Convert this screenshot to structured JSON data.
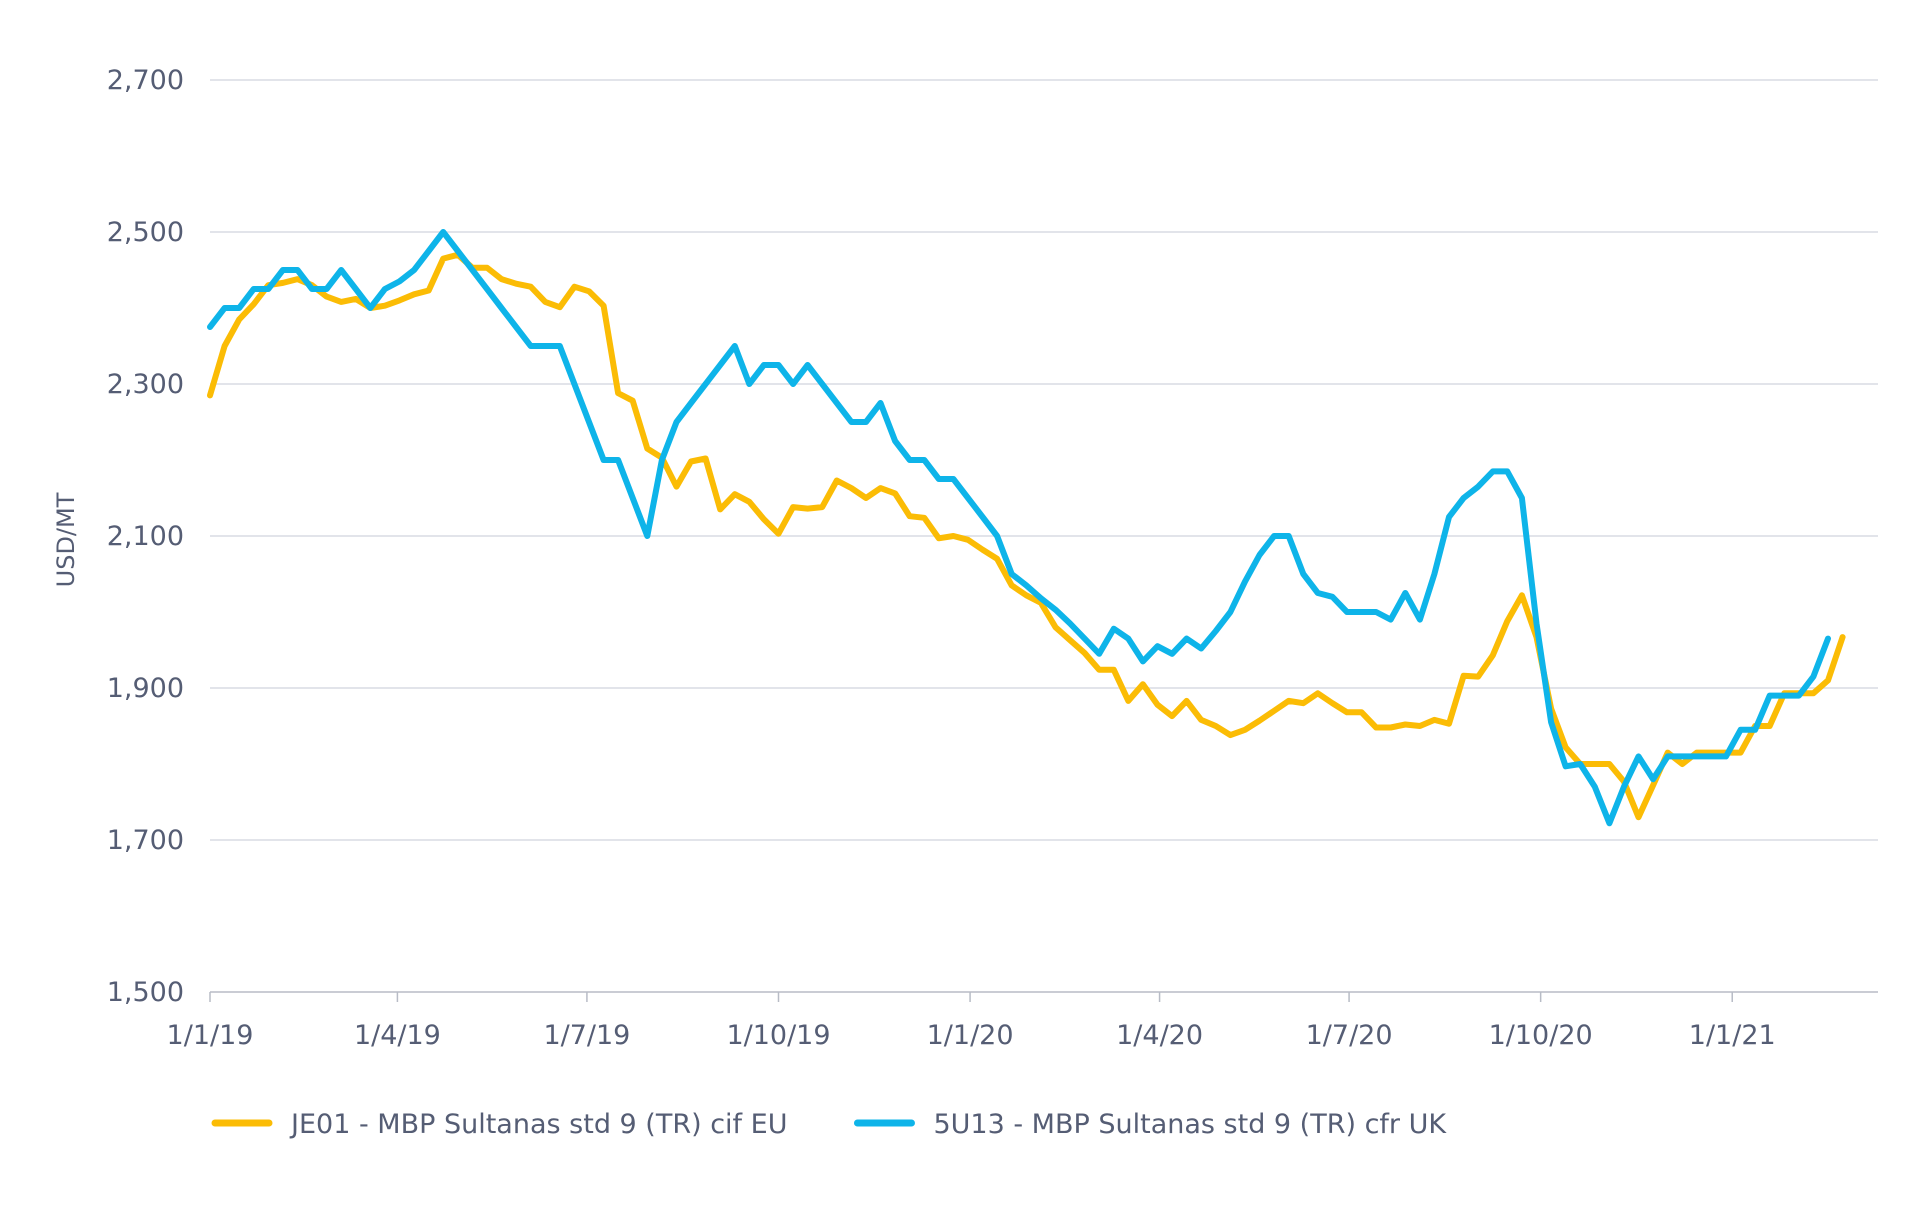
{
  "chart_data": {
    "type": "line",
    "ylabel": "USD/MT",
    "xlabel": "",
    "ylim": [
      1500,
      2700
    ],
    "yticks": [
      1500,
      1700,
      1900,
      2100,
      2300,
      2500,
      2700
    ],
    "ytick_labels": [
      "1,500",
      "1,700",
      "1,900",
      "2,100",
      "2,300",
      "2,500",
      "2,700"
    ],
    "x_range": [
      "2019-01-01",
      "2021-03-12"
    ],
    "xticks": [
      "2019-01-01",
      "2019-04-01",
      "2019-07-01",
      "2019-10-01",
      "2020-01-01",
      "2020-04-01",
      "2020-07-01",
      "2020-10-01",
      "2021-01-01"
    ],
    "xtick_labels": [
      "1/1/19",
      "1/4/19",
      "1/7/19",
      "1/10/19",
      "1/1/20",
      "1/4/20",
      "1/7/20",
      "1/10/20",
      "1/1/21"
    ],
    "grid": true,
    "legend_position": "bottom-left",
    "series": [
      {
        "name": "JE01 - MBP Sultanas std 9 (TR) cif EU",
        "color": "#fbbc05",
        "points": [
          [
            "2019-01-01",
            2285
          ],
          [
            "2019-01-08",
            2350
          ],
          [
            "2019-01-15",
            2385
          ],
          [
            "2019-01-22",
            2405
          ],
          [
            "2019-01-29",
            2430
          ],
          [
            "2019-02-05",
            2433
          ],
          [
            "2019-02-12",
            2438
          ],
          [
            "2019-02-19",
            2430
          ],
          [
            "2019-02-26",
            2415
          ],
          [
            "2019-03-05",
            2408
          ],
          [
            "2019-03-12",
            2412
          ],
          [
            "2019-03-19",
            2400
          ],
          [
            "2019-03-26",
            2403
          ],
          [
            "2019-04-02",
            2410
          ],
          [
            "2019-04-09",
            2418
          ],
          [
            "2019-04-16",
            2423
          ],
          [
            "2019-04-23",
            2465
          ],
          [
            "2019-04-30",
            2470
          ],
          [
            "2019-05-07",
            2453
          ],
          [
            "2019-05-14",
            2453
          ],
          [
            "2019-05-21",
            2438
          ],
          [
            "2019-05-28",
            2432
          ],
          [
            "2019-06-04",
            2428
          ],
          [
            "2019-06-11",
            2408
          ],
          [
            "2019-06-18",
            2401
          ],
          [
            "2019-06-25",
            2428
          ],
          [
            "2019-07-02",
            2422
          ],
          [
            "2019-07-09",
            2403
          ],
          [
            "2019-07-16",
            2288
          ],
          [
            "2019-07-23",
            2278
          ],
          [
            "2019-07-30",
            2215
          ],
          [
            "2019-08-06",
            2203
          ],
          [
            "2019-08-13",
            2165
          ],
          [
            "2019-08-20",
            2198
          ],
          [
            "2019-08-27",
            2202
          ],
          [
            "2019-09-03",
            2135
          ],
          [
            "2019-09-10",
            2155
          ],
          [
            "2019-09-17",
            2145
          ],
          [
            "2019-09-24",
            2122
          ],
          [
            "2019-10-01",
            2103
          ],
          [
            "2019-10-08",
            2138
          ],
          [
            "2019-10-15",
            2136
          ],
          [
            "2019-10-22",
            2138
          ],
          [
            "2019-10-29",
            2173
          ],
          [
            "2019-11-05",
            2163
          ],
          [
            "2019-11-12",
            2150
          ],
          [
            "2019-11-19",
            2163
          ],
          [
            "2019-11-26",
            2156
          ],
          [
            "2019-12-03",
            2126
          ],
          [
            "2019-12-10",
            2124
          ],
          [
            "2019-12-17",
            2097
          ],
          [
            "2019-12-24",
            2100
          ],
          [
            "2019-12-31",
            2095
          ],
          [
            "2020-01-07",
            2082
          ],
          [
            "2020-01-14",
            2070
          ],
          [
            "2020-01-21",
            2035
          ],
          [
            "2020-01-28",
            2022
          ],
          [
            "2020-02-04",
            2012
          ],
          [
            "2020-02-11",
            1980
          ],
          [
            "2020-02-18",
            1963
          ],
          [
            "2020-02-25",
            1946
          ],
          [
            "2020-03-03",
            1924
          ],
          [
            "2020-03-10",
            1924
          ],
          [
            "2020-03-17",
            1883
          ],
          [
            "2020-03-24",
            1905
          ],
          [
            "2020-03-31",
            1878
          ],
          [
            "2020-04-07",
            1863
          ],
          [
            "2020-04-14",
            1883
          ],
          [
            "2020-04-21",
            1858
          ],
          [
            "2020-04-28",
            1850
          ],
          [
            "2020-05-05",
            1838
          ],
          [
            "2020-05-12",
            1845
          ],
          [
            "2020-05-19",
            1857
          ],
          [
            "2020-05-26",
            1870
          ],
          [
            "2020-06-02",
            1883
          ],
          [
            "2020-06-09",
            1880
          ],
          [
            "2020-06-16",
            1893
          ],
          [
            "2020-06-23",
            1880
          ],
          [
            "2020-06-30",
            1868
          ],
          [
            "2020-07-07",
            1868
          ],
          [
            "2020-07-14",
            1848
          ],
          [
            "2020-07-21",
            1848
          ],
          [
            "2020-07-28",
            1852
          ],
          [
            "2020-08-04",
            1850
          ],
          [
            "2020-08-11",
            1858
          ],
          [
            "2020-08-18",
            1853
          ],
          [
            "2020-08-25",
            1916
          ],
          [
            "2020-09-01",
            1915
          ],
          [
            "2020-09-08",
            1943
          ],
          [
            "2020-09-15",
            1988
          ],
          [
            "2020-09-22",
            2022
          ],
          [
            "2020-09-29",
            1967
          ],
          [
            "2020-10-06",
            1873
          ],
          [
            "2020-10-13",
            1822
          ],
          [
            "2020-10-20",
            1800
          ],
          [
            "2020-10-27",
            1800
          ],
          [
            "2020-11-03",
            1800
          ],
          [
            "2020-11-10",
            1777
          ],
          [
            "2020-11-17",
            1730
          ],
          [
            "2020-11-24",
            1772
          ],
          [
            "2020-12-01",
            1815
          ],
          [
            "2020-12-08",
            1800
          ],
          [
            "2020-12-15",
            1815
          ],
          [
            "2020-12-22",
            1815
          ],
          [
            "2020-12-29",
            1815
          ],
          [
            "2021-01-05",
            1815
          ],
          [
            "2021-01-12",
            1850
          ],
          [
            "2021-01-19",
            1850
          ],
          [
            "2021-01-26",
            1893
          ],
          [
            "2021-02-02",
            1893
          ],
          [
            "2021-02-09",
            1893
          ],
          [
            "2021-02-16",
            1910
          ],
          [
            "2021-02-23",
            1967
          ]
        ]
      },
      {
        "name": "5U13 - MBP Sultanas std 9 (TR) cfr UK",
        "color": "#0eb4e9",
        "points": [
          [
            "2019-01-01",
            2375
          ],
          [
            "2019-01-08",
            2400
          ],
          [
            "2019-01-15",
            2400
          ],
          [
            "2019-01-22",
            2425
          ],
          [
            "2019-01-29",
            2425
          ],
          [
            "2019-02-05",
            2450
          ],
          [
            "2019-02-12",
            2450
          ],
          [
            "2019-02-19",
            2425
          ],
          [
            "2019-02-26",
            2425
          ],
          [
            "2019-03-05",
            2450
          ],
          [
            "2019-03-12",
            2425
          ],
          [
            "2019-03-19",
            2400
          ],
          [
            "2019-03-26",
            2425
          ],
          [
            "2019-04-02",
            2435
          ],
          [
            "2019-04-09",
            2450
          ],
          [
            "2019-04-16",
            2475
          ],
          [
            "2019-04-23",
            2500
          ],
          [
            "2019-04-30",
            2475
          ],
          [
            "2019-05-07",
            2450
          ],
          [
            "2019-05-14",
            2425
          ],
          [
            "2019-05-21",
            2400
          ],
          [
            "2019-05-28",
            2375
          ],
          [
            "2019-06-04",
            2350
          ],
          [
            "2019-06-11",
            2350
          ],
          [
            "2019-06-18",
            2350
          ],
          [
            "2019-06-25",
            2300
          ],
          [
            "2019-07-02",
            2250
          ],
          [
            "2019-07-09",
            2200
          ],
          [
            "2019-07-16",
            2200
          ],
          [
            "2019-07-23",
            2150
          ],
          [
            "2019-07-30",
            2100
          ],
          [
            "2019-08-06",
            2200
          ],
          [
            "2019-08-13",
            2250
          ],
          [
            "2019-08-20",
            2275
          ],
          [
            "2019-08-27",
            2300
          ],
          [
            "2019-09-03",
            2325
          ],
          [
            "2019-09-10",
            2350
          ],
          [
            "2019-09-17",
            2300
          ],
          [
            "2019-09-24",
            2325
          ],
          [
            "2019-10-01",
            2325
          ],
          [
            "2019-10-08",
            2300
          ],
          [
            "2019-10-15",
            2325
          ],
          [
            "2019-10-22",
            2300
          ],
          [
            "2019-10-29",
            2275
          ],
          [
            "2019-11-05",
            2250
          ],
          [
            "2019-11-12",
            2250
          ],
          [
            "2019-11-19",
            2275
          ],
          [
            "2019-11-26",
            2225
          ],
          [
            "2019-12-03",
            2200
          ],
          [
            "2019-12-10",
            2200
          ],
          [
            "2019-12-17",
            2175
          ],
          [
            "2019-12-24",
            2175
          ],
          [
            "2019-12-31",
            2150
          ],
          [
            "2020-01-07",
            2125
          ],
          [
            "2020-01-14",
            2100
          ],
          [
            "2020-01-21",
            2050
          ],
          [
            "2020-01-28",
            2035
          ],
          [
            "2020-02-04",
            2018
          ],
          [
            "2020-02-11",
            2003
          ],
          [
            "2020-02-18",
            1985
          ],
          [
            "2020-02-25",
            1965
          ],
          [
            "2020-03-03",
            1945
          ],
          [
            "2020-03-10",
            1978
          ],
          [
            "2020-03-17",
            1965
          ],
          [
            "2020-03-24",
            1935
          ],
          [
            "2020-03-31",
            1955
          ],
          [
            "2020-04-07",
            1945
          ],
          [
            "2020-04-14",
            1965
          ],
          [
            "2020-04-21",
            1952
          ],
          [
            "2020-04-28",
            1975
          ],
          [
            "2020-05-05",
            2000
          ],
          [
            "2020-05-12",
            2040
          ],
          [
            "2020-05-19",
            2075
          ],
          [
            "2020-05-26",
            2100
          ],
          [
            "2020-06-02",
            2100
          ],
          [
            "2020-06-09",
            2050
          ],
          [
            "2020-06-16",
            2025
          ],
          [
            "2020-06-23",
            2020
          ],
          [
            "2020-06-30",
            2000
          ],
          [
            "2020-07-07",
            2000
          ],
          [
            "2020-07-14",
            2000
          ],
          [
            "2020-07-21",
            1990
          ],
          [
            "2020-07-28",
            2025
          ],
          [
            "2020-08-04",
            1990
          ],
          [
            "2020-08-11",
            2050
          ],
          [
            "2020-08-18",
            2125
          ],
          [
            "2020-08-25",
            2150
          ],
          [
            "2020-09-01",
            2165
          ],
          [
            "2020-09-08",
            2185
          ],
          [
            "2020-09-15",
            2185
          ],
          [
            "2020-09-22",
            2150
          ],
          [
            "2020-09-29",
            1985
          ],
          [
            "2020-10-06",
            1855
          ],
          [
            "2020-10-13",
            1797
          ],
          [
            "2020-10-20",
            1800
          ],
          [
            "2020-10-27",
            1770
          ],
          [
            "2020-11-03",
            1722
          ],
          [
            "2020-11-10",
            1770
          ],
          [
            "2020-11-17",
            1810
          ],
          [
            "2020-11-24",
            1780
          ],
          [
            "2020-12-01",
            1810
          ],
          [
            "2020-12-08",
            1810
          ],
          [
            "2020-12-15",
            1810
          ],
          [
            "2020-12-22",
            1810
          ],
          [
            "2020-12-29",
            1810
          ],
          [
            "2021-01-05",
            1845
          ],
          [
            "2021-01-12",
            1845
          ],
          [
            "2021-01-19",
            1890
          ],
          [
            "2021-01-26",
            1890
          ],
          [
            "2021-02-02",
            1890
          ],
          [
            "2021-02-09",
            1915
          ],
          [
            "2021-02-16",
            1965
          ]
        ]
      }
    ]
  }
}
